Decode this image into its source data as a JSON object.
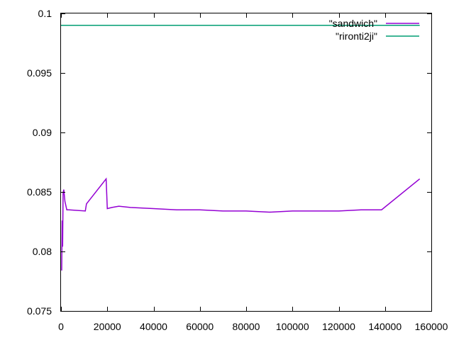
{
  "chart_data": {
    "type": "line",
    "xlim": [
      0,
      160000
    ],
    "ylim": [
      0.075,
      0.1
    ],
    "x_ticks": [
      0,
      20000,
      40000,
      60000,
      80000,
      100000,
      120000,
      140000,
      160000
    ],
    "y_ticks": [
      0.075,
      0.08,
      0.085,
      0.09,
      0.095,
      0.1
    ],
    "x_tick_labels": [
      "0",
      "20000",
      "40000",
      "60000",
      "80000",
      "100000",
      "120000",
      "140000",
      "160000"
    ],
    "y_tick_labels": [
      "0.075",
      "0.08",
      "0.085",
      "0.09",
      "0.095",
      "0.1"
    ],
    "grid": false,
    "legend_position": "top-right",
    "series": [
      {
        "name": "\"sandwich\"",
        "color": "#9400d3",
        "x": [
          300,
          500,
          700,
          900,
          1200,
          1700,
          2500,
          3500,
          10500,
          11000,
          19500,
          20000,
          22000,
          25000,
          30000,
          40000,
          50000,
          60000,
          70000,
          80000,
          90000,
          100000,
          110000,
          120000,
          130000,
          138500,
          155000
        ],
        "y": [
          0.0784,
          0.0826,
          0.0804,
          0.0849,
          0.0852,
          0.0842,
          0.0835,
          0.0835,
          0.0834,
          0.084,
          0.0861,
          0.0836,
          0.0837,
          0.0838,
          0.0837,
          0.0836,
          0.0835,
          0.0835,
          0.0834,
          0.0834,
          0.0833,
          0.0834,
          0.0834,
          0.0834,
          0.0835,
          0.0835,
          0.0861
        ]
      },
      {
        "name": "\"rironti2ji\"",
        "color": "#009e73",
        "x": [
          0,
          155000
        ],
        "y": [
          0.099,
          0.099
        ]
      }
    ]
  }
}
